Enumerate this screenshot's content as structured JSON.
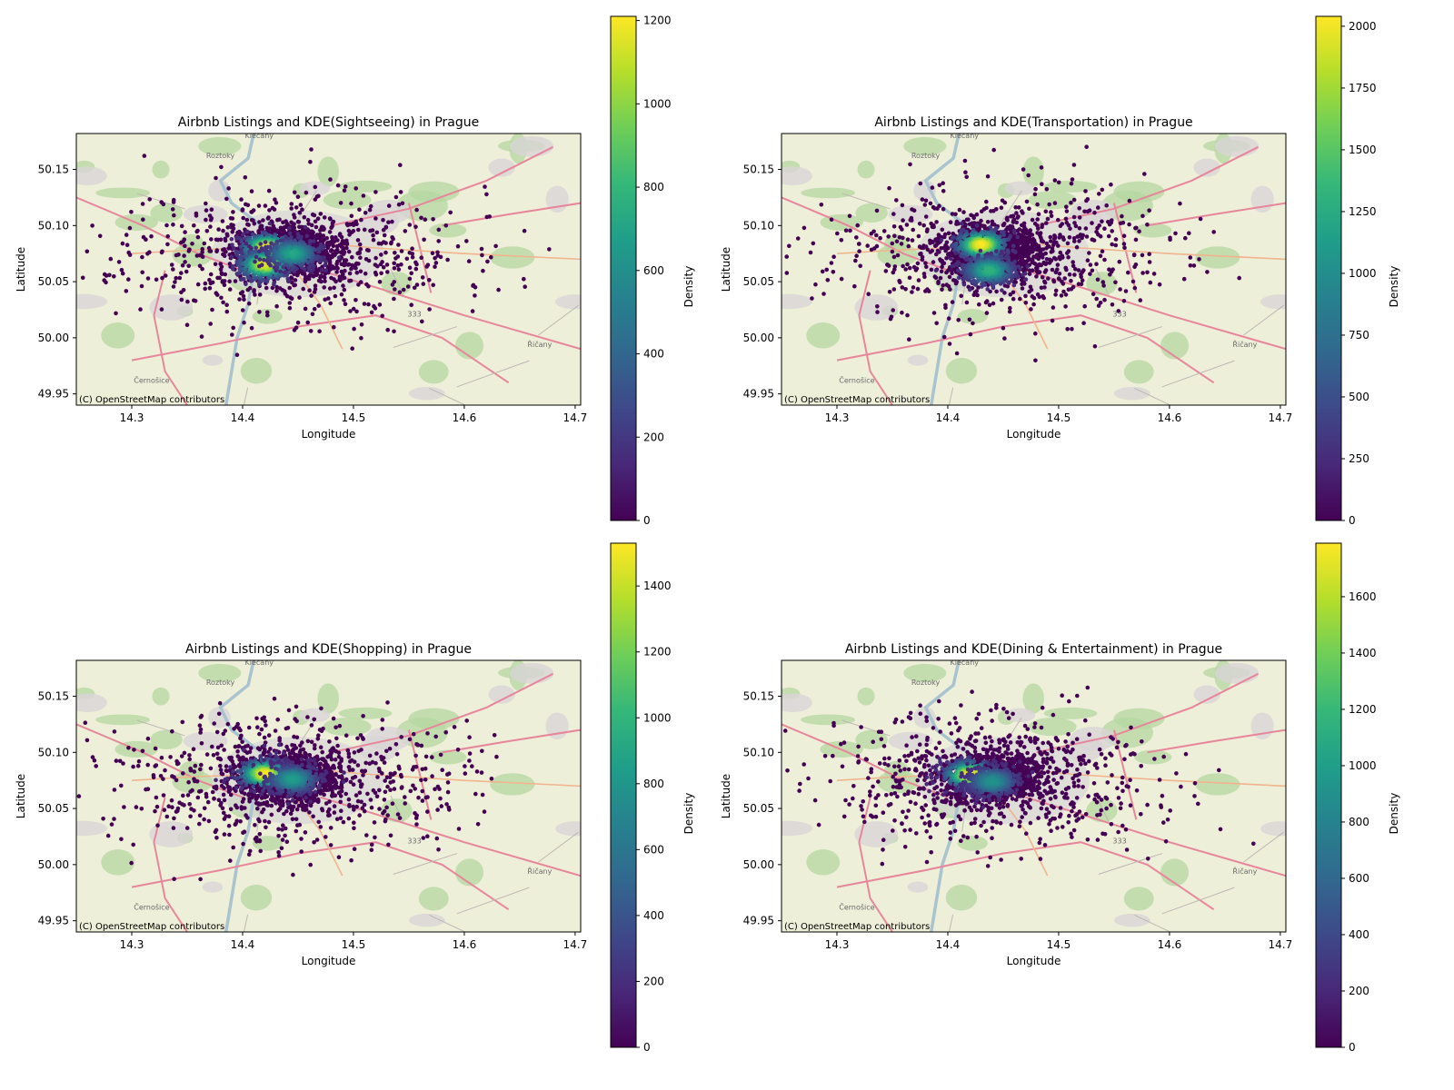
{
  "chart_data": [
    {
      "type": "scatter",
      "title": "Airbnb Listings and KDE(Sightseeing) in Prague",
      "xlabel": "Longitude",
      "ylabel": "Latitude",
      "xlim": [
        14.25,
        14.705
      ],
      "ylim": [
        49.94,
        50.182
      ],
      "xticks": [
        "14.3",
        "14.4",
        "14.5",
        "14.6",
        "14.7"
      ],
      "yticks": [
        "49.95",
        "50.00",
        "50.05",
        "50.10",
        "50.15"
      ],
      "attribution": "(C) OpenStreetMap contributors",
      "colorbar": {
        "label": "Density",
        "min": 0,
        "max": 1210,
        "cmap": "viridis",
        "ticks": [
          "0",
          "200",
          "400",
          "600",
          "800",
          "1000",
          "1200"
        ]
      },
      "hotspots": [
        {
          "lon": 14.422,
          "lat": 50.08,
          "density": 1.0
        },
        {
          "lon": 14.42,
          "lat": 50.065,
          "density": 0.95
        },
        {
          "lon": 14.445,
          "lat": 50.075,
          "density": 0.55
        }
      ],
      "seed": 11
    },
    {
      "type": "scatter",
      "title": "Airbnb Listings and KDE(Transportation) in Prague",
      "xlabel": "Longitude",
      "ylabel": "Latitude",
      "xlim": [
        14.25,
        14.705
      ],
      "ylim": [
        49.94,
        50.182
      ],
      "xticks": [
        "14.3",
        "14.4",
        "14.5",
        "14.6",
        "14.7"
      ],
      "yticks": [
        "49.95",
        "50.00",
        "50.05",
        "50.10",
        "50.15"
      ],
      "attribution": "(C) OpenStreetMap contributors",
      "colorbar": {
        "label": "Density",
        "min": 0,
        "max": 2040,
        "cmap": "viridis",
        "ticks": [
          "0",
          "250",
          "500",
          "750",
          "1000",
          "1250",
          "1500",
          "1750",
          "2000"
        ]
      },
      "hotspots": [
        {
          "lon": 14.43,
          "lat": 50.083,
          "density": 1.0
        },
        {
          "lon": 14.437,
          "lat": 50.06,
          "density": 0.6
        }
      ],
      "seed": 23
    },
    {
      "type": "scatter",
      "title": "Airbnb Listings and KDE(Shopping) in Prague",
      "xlabel": "Longitude",
      "ylabel": "Latitude",
      "xlim": [
        14.25,
        14.705
      ],
      "ylim": [
        49.94,
        50.182
      ],
      "xticks": [
        "14.3",
        "14.4",
        "14.5",
        "14.6",
        "14.7"
      ],
      "yticks": [
        "49.95",
        "50.00",
        "50.05",
        "50.10",
        "50.15"
      ],
      "attribution": "(C) OpenStreetMap contributors",
      "colorbar": {
        "label": "Density",
        "min": 0,
        "max": 1530,
        "cmap": "viridis",
        "ticks": [
          "0",
          "200",
          "400",
          "600",
          "800",
          "1000",
          "1200",
          "1400"
        ]
      },
      "hotspots": [
        {
          "lon": 14.42,
          "lat": 50.081,
          "density": 1.0
        },
        {
          "lon": 14.445,
          "lat": 50.076,
          "density": 0.5
        }
      ],
      "seed": 37
    },
    {
      "type": "scatter",
      "title": "Airbnb Listings and KDE(Dining & Entertainment) in Prague",
      "xlabel": "Longitude",
      "ylabel": "Latitude",
      "xlim": [
        14.25,
        14.705
      ],
      "ylim": [
        49.94,
        50.182
      ],
      "xticks": [
        "14.3",
        "14.4",
        "14.5",
        "14.6",
        "14.7"
      ],
      "yticks": [
        "49.95",
        "50.00",
        "50.05",
        "50.10",
        "50.15"
      ],
      "attribution": "(C) OpenStreetMap contributors",
      "colorbar": {
        "label": "Density",
        "min": 0,
        "max": 1790,
        "cmap": "viridis",
        "ticks": [
          "0",
          "200",
          "400",
          "600",
          "800",
          "1000",
          "1200",
          "1400",
          "1600"
        ]
      },
      "hotspots": [
        {
          "lon": 14.42,
          "lat": 50.08,
          "density": 1.0
        },
        {
          "lon": 14.44,
          "lat": 50.074,
          "density": 0.45
        }
      ],
      "seed": 51
    }
  ],
  "basemap": {
    "place_labels": [
      {
        "text": "Klecany",
        "lon": 14.415,
        "lat": 50.178
      },
      {
        "text": "Roztoky",
        "lon": 14.38,
        "lat": 50.16
      },
      {
        "text": "Řičany",
        "lon": 14.668,
        "lat": 49.992
      },
      {
        "text": "Černošice",
        "lon": 14.318,
        "lat": 49.96
      },
      {
        "text": "333",
        "lon": 14.555,
        "lat": 50.019
      }
    ],
    "colors": {
      "land": "#eeefd9",
      "forest": "#b5d7a0",
      "urban": "#d9d5d6",
      "water": "#a9c4cf",
      "motorway": "#e7869b",
      "trunk": "#f1b48c",
      "minor": "#bdb7b2"
    }
  }
}
